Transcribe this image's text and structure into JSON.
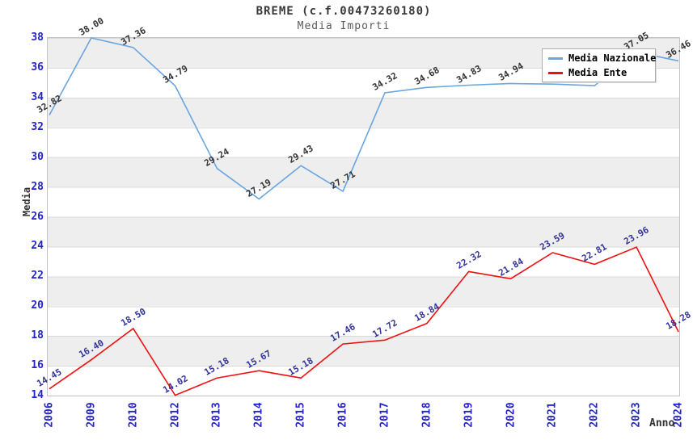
{
  "title": "BREME (c.f.00473260180)",
  "subtitle": "Media Importi",
  "y_axis": {
    "label": "Media",
    "ticks": [
      "38",
      "36",
      "34",
      "32",
      "30",
      "28",
      "26",
      "24",
      "22",
      "20",
      "18",
      "16",
      "14"
    ],
    "tick_color": "#2323cb"
  },
  "x_axis": {
    "label": "Anno",
    "ticks": [
      "2006",
      "2009",
      "2010",
      "2012",
      "2013",
      "2014",
      "2015",
      "2016",
      "2017",
      "2018",
      "2019",
      "2020",
      "2021",
      "2022",
      "2023",
      "2024"
    ],
    "tick_color": "#2323cb"
  },
  "legend": {
    "items": [
      {
        "label": "Media Nazionale",
        "color": "#69a5e1"
      },
      {
        "label": "Media Ente",
        "color": "#ee1111"
      }
    ]
  },
  "chart_data": {
    "type": "line",
    "categories": [
      "2006",
      "2009",
      "2010",
      "2012",
      "2013",
      "2014",
      "2015",
      "2016",
      "2017",
      "2018",
      "2019",
      "2020",
      "2021",
      "2022",
      "2023",
      "2024"
    ],
    "series": [
      {
        "name": "Media Nazionale",
        "color": "#69a5e1",
        "label_color": "#333333",
        "values": [
          32.82,
          38.0,
          37.36,
          34.79,
          29.24,
          27.19,
          29.43,
          27.71,
          34.32,
          34.68,
          34.83,
          34.94,
          34.9,
          34.8,
          37.05,
          36.46
        ],
        "labels": [
          "32.82",
          "38.00",
          "37.36",
          "34.79",
          "29.24",
          "27.19",
          "29.43",
          "27.71",
          "34.32",
          "34.68",
          "34.83",
          "34.94",
          "",
          "",
          "37.05",
          "36.46"
        ]
      },
      {
        "name": "Media Ente",
        "color": "#ee1111",
        "label_color": "#333399",
        "values": [
          14.45,
          16.4,
          18.5,
          14.02,
          15.18,
          15.67,
          15.18,
          17.46,
          17.72,
          18.84,
          22.32,
          21.84,
          23.59,
          22.81,
          23.96,
          18.28
        ],
        "labels": [
          "14.45",
          "16.40",
          "18.50",
          "14.02",
          "15.18",
          "15.67",
          "15.18",
          "17.46",
          "17.72",
          "18.84",
          "22.32",
          "21.84",
          "23.59",
          "22.81",
          "23.96",
          "18.28"
        ]
      }
    ],
    "title": "BREME (c.f.00473260180)",
    "xlabel": "Anno",
    "ylabel": "Media",
    "ylim": [
      14,
      38
    ],
    "y_tick_step": 2,
    "grid": "horizontal alternating bands",
    "band_color": "#eeeeee",
    "gridline_color": "#d9d9d9",
    "legend_position": "top-right"
  },
  "colors": {
    "background": "#ffffff",
    "plot_border": "#c2c2c2",
    "title_text": "#383838",
    "subtitle_text": "#5a5a5a"
  }
}
